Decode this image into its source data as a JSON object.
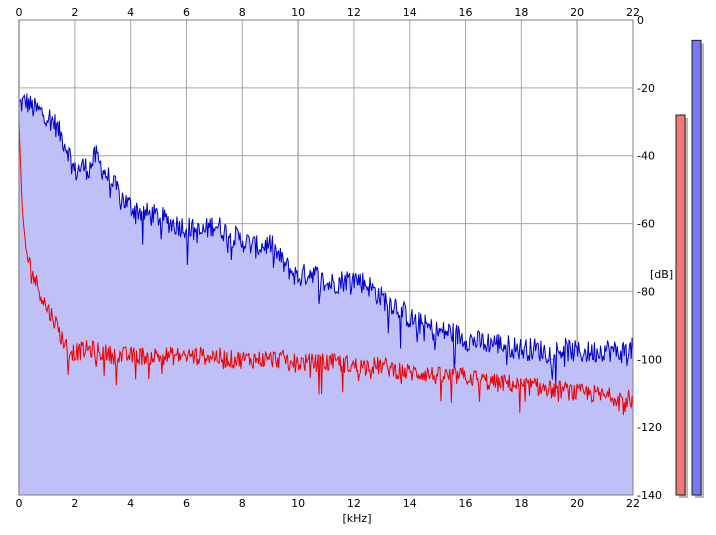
{
  "chart_data": {
    "type": "area",
    "xlabel": "[kHz]",
    "ylabel": "[dB]",
    "xlim": [
      0,
      22
    ],
    "ylim": [
      -140,
      0
    ],
    "x_ticks": [
      "0",
      "2",
      "4",
      "6",
      "8",
      "10",
      "12",
      "14",
      "16",
      "18",
      "20",
      "22"
    ],
    "y_ticks": [
      "0",
      "-20",
      "-40",
      "-60",
      "-80",
      "-100",
      "-120",
      "-140"
    ],
    "grid": true,
    "series": [
      {
        "color": "#0000cc",
        "fill": "#c0c0f8",
        "x": [
          0,
          0.25,
          0.5,
          0.75,
          1.0,
          1.25,
          1.5,
          1.75,
          2.0,
          2.25,
          2.5,
          2.75,
          3.0,
          3.25,
          3.5,
          3.75,
          4.0,
          4.5,
          5.0,
          5.5,
          6.0,
          6.5,
          7.0,
          7.5,
          8.0,
          8.5,
          9.0,
          9.5,
          10.0,
          10.5,
          11.0,
          11.5,
          12.0,
          12.5,
          13.0,
          13.5,
          14.0,
          14.5,
          15.0,
          15.5,
          16.0,
          16.5,
          17.0,
          17.5,
          18.0,
          18.5,
          19.0,
          19.5,
          20.0,
          20.5,
          21.0,
          21.5,
          22.0
        ],
        "values": [
          -25,
          -24,
          -26,
          -27,
          -28,
          -30,
          -34,
          -38,
          -45,
          -43,
          -44,
          -40,
          -44,
          -47,
          -50,
          -53,
          -55,
          -57,
          -58,
          -60,
          -61,
          -63,
          -60,
          -63,
          -65,
          -67,
          -66,
          -72,
          -76,
          -74,
          -78,
          -77,
          -76,
          -78,
          -82,
          -84,
          -88,
          -90,
          -92,
          -92,
          -94,
          -95,
          -95,
          -96,
          -97,
          -97,
          -98,
          -97,
          -98,
          -98,
          -97,
          -98,
          -97
        ]
      },
      {
        "color": "#ee0000",
        "x": [
          0,
          0.1,
          0.25,
          0.5,
          0.75,
          1.0,
          1.25,
          1.5,
          1.75,
          2.0,
          2.5,
          3.0,
          3.5,
          4.0,
          4.5,
          5.0,
          5.5,
          6.0,
          6.5,
          7.0,
          7.5,
          8.0,
          8.5,
          9.0,
          9.5,
          10.0,
          10.5,
          11.0,
          11.5,
          12.0,
          12.5,
          13.0,
          13.5,
          14.0,
          14.5,
          15.0,
          15.5,
          16.0,
          16.5,
          17.0,
          17.5,
          18.0,
          18.5,
          19.0,
          19.5,
          20.0,
          20.5,
          21.0,
          21.5,
          22.0
        ],
        "values": [
          -30,
          -55,
          -68,
          -75,
          -80,
          -85,
          -88,
          -93,
          -97,
          -98,
          -97,
          -98,
          -99,
          -99,
          -99,
          -99,
          -99,
          -99,
          -99,
          -99,
          -100,
          -100,
          -100,
          -100,
          -100,
          -101,
          -101,
          -101,
          -101,
          -102,
          -102,
          -102,
          -103,
          -104,
          -104,
          -105,
          -105,
          -105,
          -106,
          -107,
          -107,
          -108,
          -108,
          -109,
          -109,
          -110,
          -110,
          -111,
          -111,
          -112
        ]
      }
    ],
    "level_meters": [
      {
        "color": "#f07878",
        "level_db": -28
      },
      {
        "color": "#7878f0",
        "level_db": -6
      }
    ]
  }
}
